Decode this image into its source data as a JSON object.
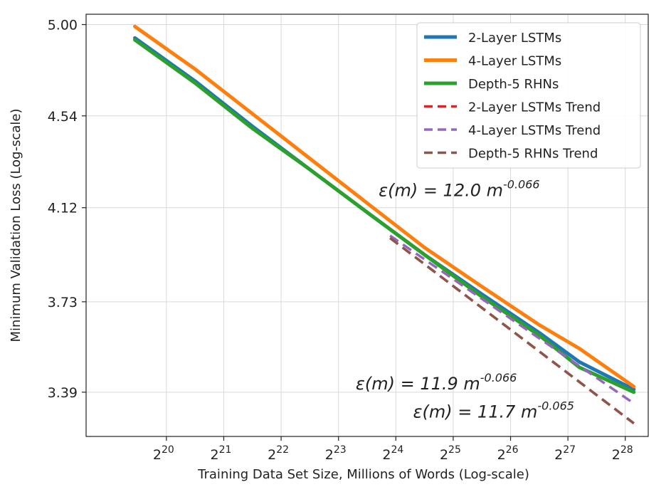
{
  "chart_data": {
    "type": "line",
    "xlabel": "Training Data Set Size, Millions of Words (Log-scale)",
    "ylabel": "Minimum Validation Loss (Log-scale)",
    "x_scale": "log2",
    "y_scale": "log",
    "xlim_exp": [
      18.6,
      28.4
    ],
    "ylim": [
      3.235,
      5.055
    ],
    "grid": true,
    "legend_position": "top-right",
    "x_ticks": [
      {
        "exp": 20,
        "base": "2",
        "sup": "20"
      },
      {
        "exp": 21,
        "base": "2",
        "sup": "21"
      },
      {
        "exp": 22,
        "base": "2",
        "sup": "22"
      },
      {
        "exp": 23,
        "base": "2",
        "sup": "23"
      },
      {
        "exp": 24,
        "base": "2",
        "sup": "24"
      },
      {
        "exp": 25,
        "base": "2",
        "sup": "25"
      },
      {
        "exp": 26,
        "base": "2",
        "sup": "26"
      },
      {
        "exp": 27,
        "base": "2",
        "sup": "27"
      },
      {
        "exp": 28,
        "base": "2",
        "sup": "28"
      }
    ],
    "y_ticks": [
      {
        "value": 5.0,
        "label": "5.00"
      },
      {
        "value": 4.54,
        "label": "4.54"
      },
      {
        "value": 4.12,
        "label": "4.12"
      },
      {
        "value": 3.73,
        "label": "3.73"
      },
      {
        "value": 3.39,
        "label": "3.39"
      }
    ],
    "series": [
      {
        "name": "2-Layer LSTMs",
        "color": "#1f77b4",
        "style": "solid",
        "x_exp": [
          19.45,
          20.5,
          21.5,
          22.5,
          23.5,
          24.5,
          25.5,
          26.5,
          27.2,
          28.15
        ],
        "y": [
          4.93,
          4.71,
          4.49,
          4.29,
          4.1,
          3.92,
          3.76,
          3.61,
          3.5,
          3.4
        ]
      },
      {
        "name": "4-Layer LSTMs",
        "color": "#ff7f0e",
        "style": "solid",
        "x_exp": [
          19.45,
          20.5,
          21.5,
          22.5,
          23.5,
          24.5,
          25.5,
          26.5,
          27.2,
          28.15
        ],
        "y": [
          4.99,
          4.77,
          4.55,
          4.34,
          4.14,
          3.95,
          3.79,
          3.64,
          3.55,
          3.41
        ]
      },
      {
        "name": "Depth-5 RHNs",
        "color": "#2ca02c",
        "style": "solid",
        "x_exp": [
          19.45,
          20.5,
          21.5,
          22.5,
          23.5,
          24.5,
          25.5,
          26.5,
          27.2,
          28.15
        ],
        "y": [
          4.92,
          4.7,
          4.48,
          4.29,
          4.1,
          3.92,
          3.75,
          3.6,
          3.48,
          3.39
        ]
      },
      {
        "name": "2-Layer LSTMs Trend",
        "color": "#d62728",
        "style": "dashed",
        "x_exp": [
          23.9,
          28.15
        ],
        "y": [
          3.99,
          3.28
        ]
      },
      {
        "name": "4-Layer LSTMs Trend",
        "color": "#9467bd",
        "style": "dashed",
        "x_exp": [
          23.9,
          28.15
        ],
        "y": [
          4.0,
          3.35
        ]
      },
      {
        "name": "Depth-5 RHNs Trend",
        "color": "#8c564b",
        "style": "dashed",
        "x_exp": [
          23.9,
          28.15
        ],
        "y": [
          3.99,
          3.28
        ]
      }
    ],
    "annotations": [
      {
        "id": "anno-4layer",
        "text": "ε(m) = 12.0 m",
        "sup": "-0.066",
        "at_x_exp": 23.7,
        "at_y": 4.17
      },
      {
        "id": "anno-2layer",
        "text": "ε(m) = 11.9 m",
        "sup": "-0.066",
        "at_x_exp": 23.3,
        "at_y": 3.4
      },
      {
        "id": "anno-rhn",
        "text": "ε(m) = 11.7 m",
        "sup": "-0.065",
        "at_x_exp": 24.3,
        "at_y": 3.3
      }
    ]
  }
}
